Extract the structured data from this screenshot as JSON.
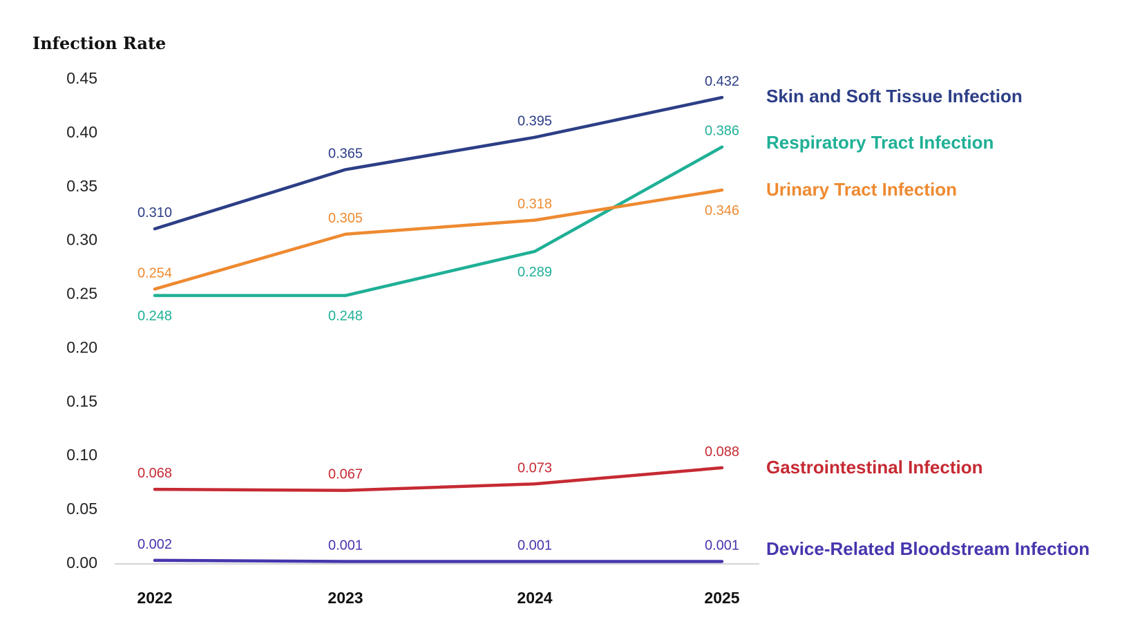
{
  "chart_data": {
    "type": "line",
    "ylabel": "Infection Rate",
    "xlabel": "",
    "categories": [
      "2022",
      "2023",
      "2024",
      "2025"
    ],
    "ylim": [
      0,
      0.45
    ],
    "yticks": [
      "0.00",
      "0.05",
      "0.10",
      "0.15",
      "0.20",
      "0.25",
      "0.30",
      "0.35",
      "0.40",
      "0.45"
    ],
    "grid": false,
    "legend": "right, inline at line ends",
    "series": [
      {
        "name": "Skin and Soft Tissue Infection",
        "color": "#2c3e86",
        "values": [
          0.31,
          0.365,
          0.395,
          0.432
        ],
        "labels": [
          "0.310",
          "0.365",
          "0.395",
          "0.432"
        ]
      },
      {
        "name": "Respiratory Tract Infection",
        "color": "#1fb096",
        "values": [
          0.248,
          0.248,
          0.289,
          0.386
        ],
        "labels": [
          "0.248",
          "0.248",
          "0.289",
          "0.386"
        ]
      },
      {
        "name": "Urinary Tract Infection",
        "color": "#ee8a31",
        "values": [
          0.254,
          0.305,
          0.318,
          0.346
        ],
        "labels": [
          "0.254",
          "0.305",
          "0.318",
          "0.346"
        ]
      },
      {
        "name": "Gastrointestinal Infection",
        "color": "#c62a33",
        "values": [
          0.068,
          0.067,
          0.073,
          0.088
        ],
        "labels": [
          "0.068",
          "0.067",
          "0.073",
          "0.088"
        ]
      },
      {
        "name": "Device-Related Bloodstream Infection",
        "color": "#4636ad",
        "values": [
          0.002,
          0.001,
          0.001,
          0.001
        ],
        "labels": [
          "0.002",
          "0.001",
          "0.001",
          "0.001"
        ]
      }
    ]
  }
}
